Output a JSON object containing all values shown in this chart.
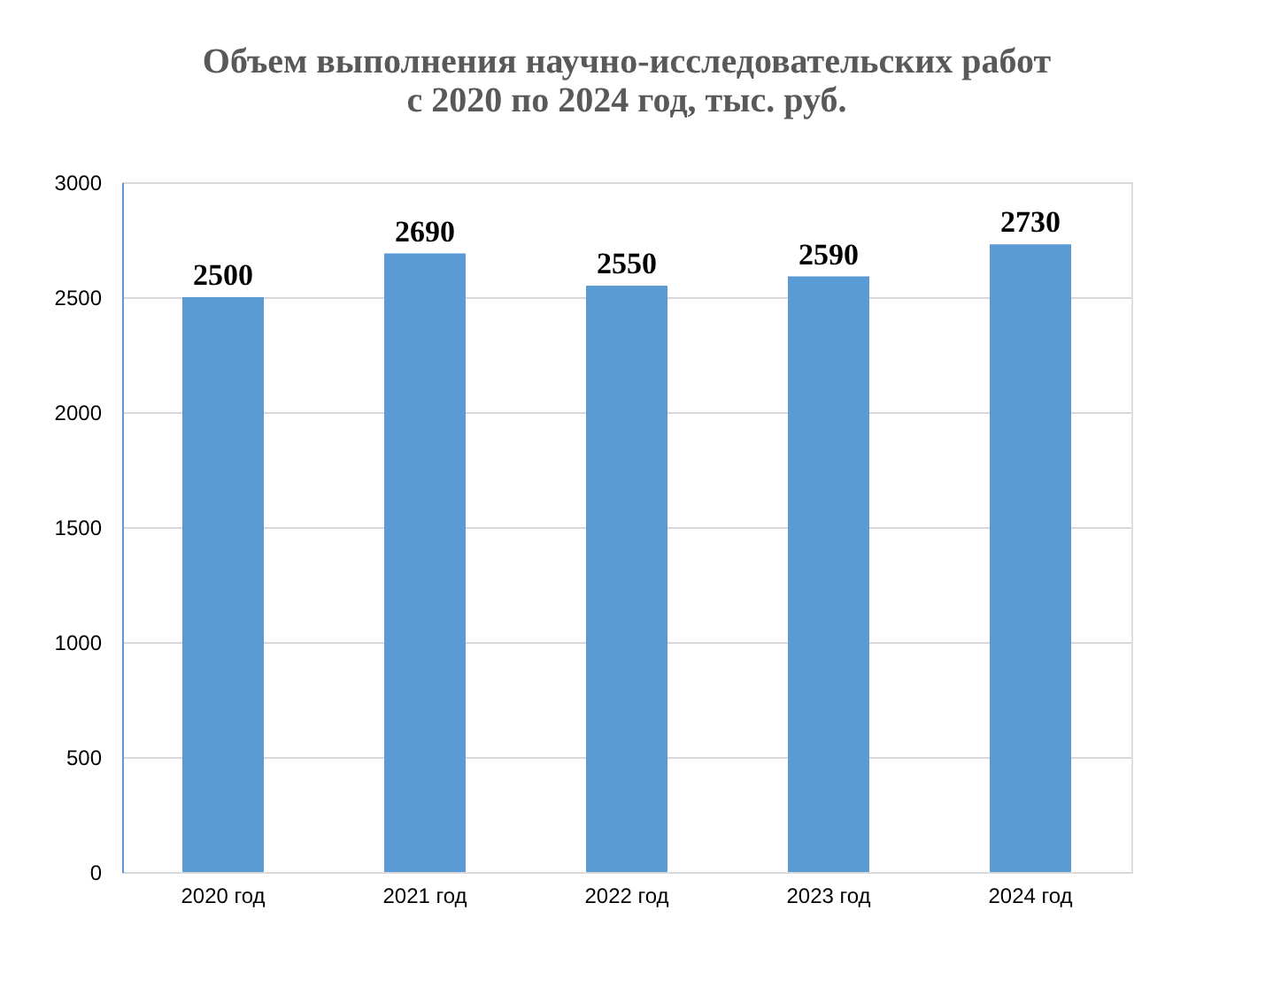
{
  "chart_data": {
    "type": "bar",
    "title": [
      "Объем выполнения научно-исследовательских работ",
      "с 2020 по 2024 год, тыс. руб."
    ],
    "categories": [
      "2020 год",
      "2021 год",
      "2022 год",
      "2023 год",
      "2024 год"
    ],
    "values": [
      2500,
      2690,
      2550,
      2590,
      2730
    ],
    "color": "#5b9bd5",
    "ylim": [
      0,
      3000
    ],
    "yticks": [
      0,
      500,
      1000,
      1500,
      2000,
      2500,
      3000
    ],
    "grid": "y",
    "data_labels": true
  }
}
